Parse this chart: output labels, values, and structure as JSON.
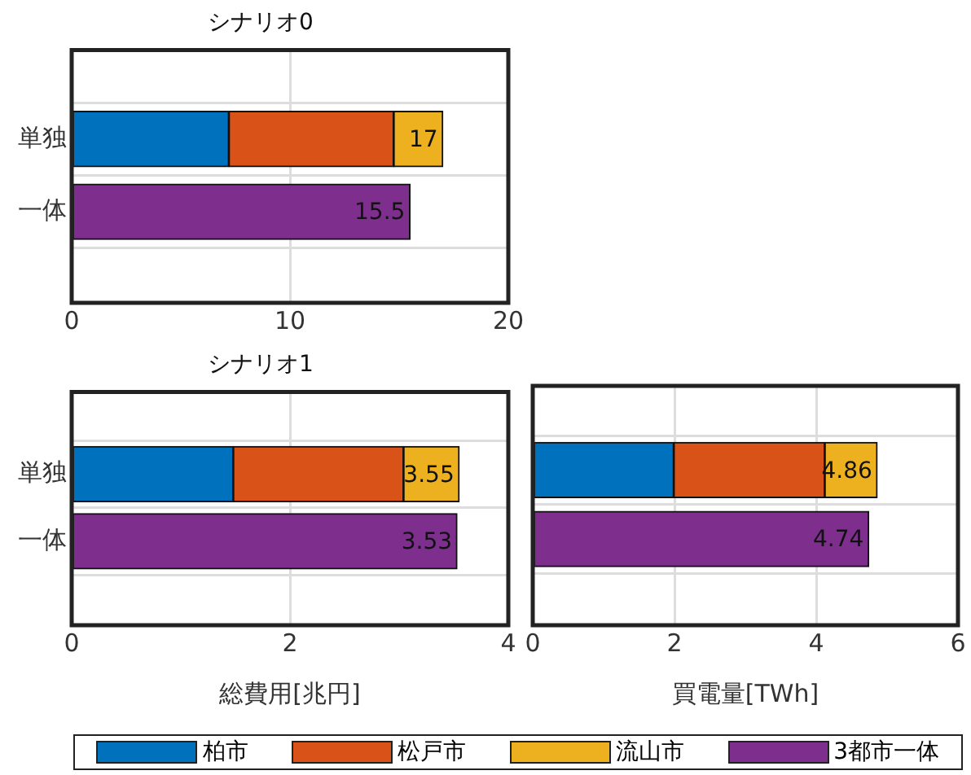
{
  "chart_data": [
    {
      "type": "bar",
      "title": "シナリオ0",
      "orientation": "horizontal",
      "stacked": true,
      "categories": [
        "単独",
        "一体"
      ],
      "xlim": [
        0,
        20
      ],
      "xticks": [
        0,
        10,
        20
      ],
      "grid": true,
      "legend": "bottom",
      "totals": [
        "17",
        "15.5"
      ],
      "series": [
        {
          "name": "柏市",
          "color": "#0072bd",
          "values": [
            7.2,
            null
          ]
        },
        {
          "name": "松戸市",
          "color": "#d95319",
          "values": [
            7.55,
            null
          ]
        },
        {
          "name": "流山市",
          "color": "#edb120",
          "values": [
            2.25,
            null
          ]
        },
        {
          "name": "3都市一体",
          "color": "#7e2f8e",
          "values": [
            null,
            15.5
          ]
        }
      ]
    },
    {
      "type": "bar",
      "title": "シナリオ1",
      "xlabel": "総費用[兆円]",
      "orientation": "horizontal",
      "stacked": true,
      "categories": [
        "単独",
        "一体"
      ],
      "xlim": [
        0,
        4
      ],
      "xticks": [
        0,
        2,
        4
      ],
      "grid": true,
      "totals": [
        "3.55",
        "3.53"
      ],
      "series": [
        {
          "color": "#0072bd",
          "values": [
            1.48,
            null
          ]
        },
        {
          "color": "#d95319",
          "values": [
            1.56,
            null
          ]
        },
        {
          "color": "#edb120",
          "values": [
            0.51,
            null
          ]
        },
        {
          "color": "#7e2f8e",
          "values": [
            null,
            3.53
          ]
        }
      ]
    },
    {
      "type": "bar",
      "xlabel": "買電量[TWh]",
      "orientation": "horizontal",
      "stacked": true,
      "categories": [
        null,
        null
      ],
      "xlim": [
        0,
        6
      ],
      "xticks": [
        0,
        2,
        4,
        6
      ],
      "grid": true,
      "tick_labels": "x",
      "totals": [
        "4.86",
        "4.74"
      ],
      "series": [
        {
          "color": "#0072bd",
          "values": [
            1.99,
            null
          ]
        },
        {
          "color": "#d95319",
          "values": [
            2.13,
            null
          ]
        },
        {
          "color": "#edb120",
          "values": [
            0.74,
            null
          ]
        },
        {
          "color": "#7e2f8e",
          "values": [
            null,
            4.74
          ]
        }
      ]
    }
  ]
}
